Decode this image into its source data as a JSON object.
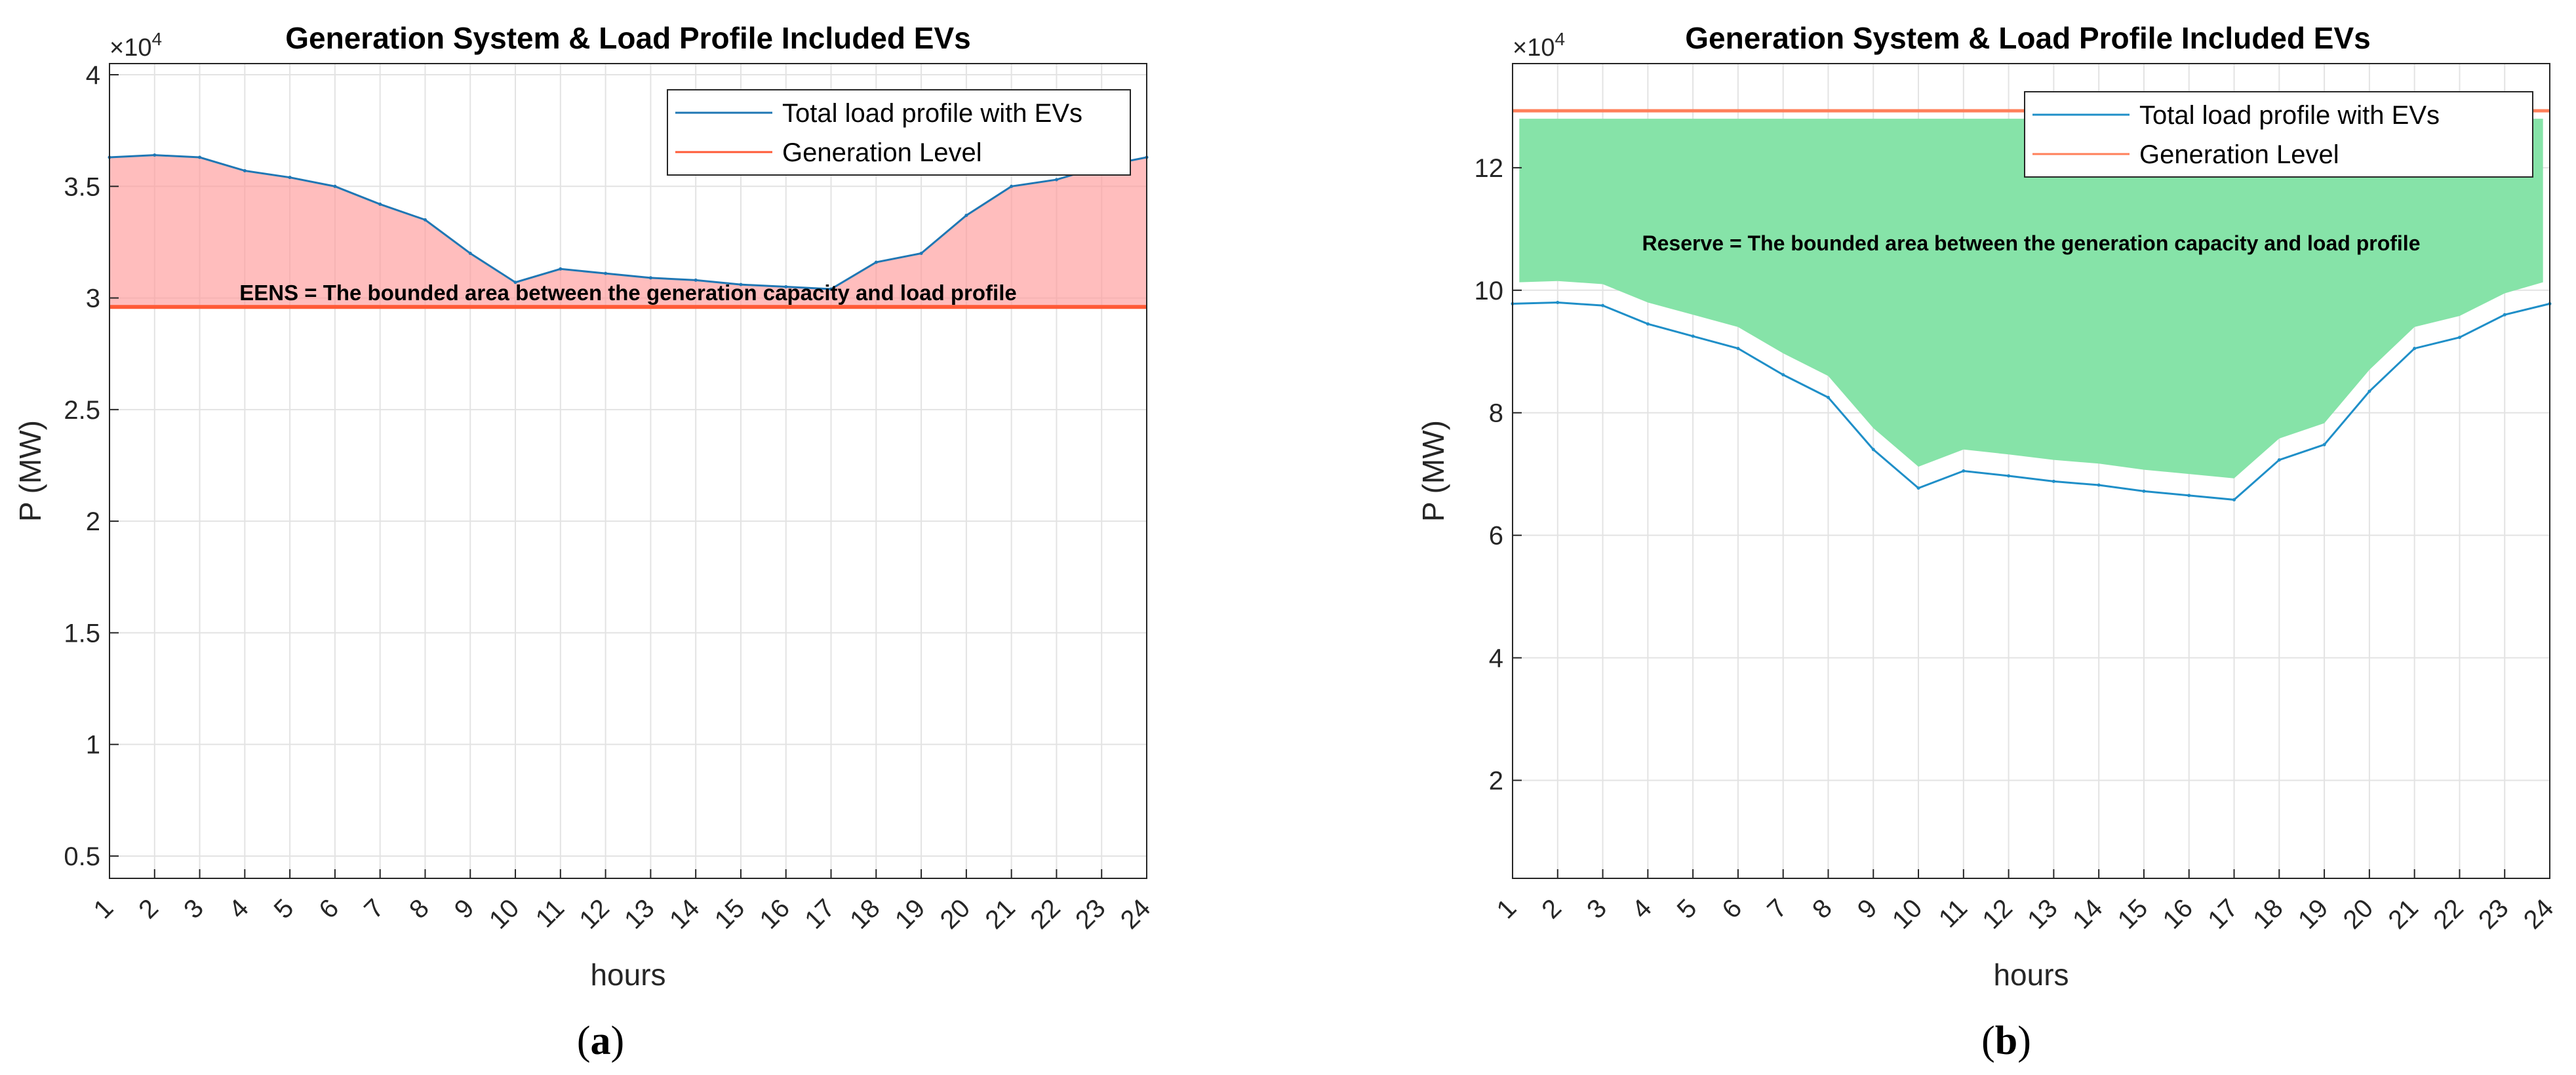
{
  "chart_data": [
    {
      "panel": "a",
      "type": "area",
      "title": "Generation System & Load Profile Included EVs",
      "xlabel": "hours",
      "ylabel": "P (MW)",
      "exponent_label": "×10",
      "exponent_power": "4",
      "xlim": [
        1,
        24
      ],
      "ylim": [
        0.4,
        4.05
      ],
      "xticks": [
        1,
        2,
        3,
        4,
        5,
        6,
        7,
        8,
        9,
        10,
        11,
        12,
        13,
        14,
        15,
        16,
        17,
        18,
        19,
        20,
        21,
        22,
        23,
        24
      ],
      "xtick_labels": [
        "1",
        "2",
        "3",
        "4",
        "5",
        "6",
        "7",
        "8",
        "9",
        "10",
        "11",
        "12",
        "13",
        "14",
        "15",
        "16",
        "17",
        "18",
        "19",
        "20",
        "21",
        "22",
        "23",
        "24"
      ],
      "yticks": [
        0.5,
        1,
        1.5,
        2,
        2.5,
        3,
        3.5,
        4
      ],
      "ytick_labels": [
        "0.5",
        "1",
        "1.5",
        "2",
        "2.5",
        "3",
        "3.5",
        "4"
      ],
      "grid": true,
      "legend_position": "top-right",
      "series": [
        {
          "name": "Total load profile with EVs",
          "color": "#1f77b4",
          "x": [
            1,
            2,
            3,
            4,
            5,
            6,
            7,
            8,
            9,
            10,
            11,
            12,
            13,
            14,
            15,
            16,
            17,
            18,
            19,
            20,
            21,
            22,
            23,
            24
          ],
          "values": [
            3.63,
            3.64,
            3.63,
            3.57,
            3.54,
            3.5,
            3.42,
            3.35,
            3.2,
            3.07,
            3.13,
            3.11,
            3.09,
            3.08,
            3.06,
            3.05,
            3.04,
            3.16,
            3.2,
            3.37,
            3.5,
            3.53,
            3.59,
            3.63
          ]
        },
        {
          "name": "Generation Level",
          "color": "#ff5a36",
          "constant": 2.96
        }
      ],
      "fill": {
        "color": "#ff9a9a",
        "between": [
          "Total load profile with EVs",
          "Generation Level"
        ]
      },
      "annotation": {
        "text": "EENS = The bounded area between the generation capacity and load profile",
        "x": 12.5,
        "y": 2.99
      },
      "caption": "(a)"
    },
    {
      "panel": "b",
      "type": "area",
      "title": "Generation System & Load Profile Included EVs",
      "xlabel": "hours",
      "ylabel": "P (MW)",
      "exponent_label": "×10",
      "exponent_power": "4",
      "xlim": [
        1,
        24
      ],
      "ylim": [
        0.4,
        13.7
      ],
      "xticks": [
        1,
        2,
        3,
        4,
        5,
        6,
        7,
        8,
        9,
        10,
        11,
        12,
        13,
        14,
        15,
        16,
        17,
        18,
        19,
        20,
        21,
        22,
        23,
        24
      ],
      "xtick_labels": [
        "1",
        "2",
        "3",
        "4",
        "5",
        "6",
        "7",
        "8",
        "9",
        "10",
        "11",
        "12",
        "13",
        "14",
        "15",
        "16",
        "17",
        "18",
        "19",
        "20",
        "21",
        "22",
        "23",
        "24"
      ],
      "yticks": [
        2,
        4,
        6,
        8,
        10,
        12
      ],
      "ytick_labels": [
        "2",
        "4",
        "6",
        "8",
        "10",
        "12"
      ],
      "grid": true,
      "legend_position": "top-right",
      "series": [
        {
          "name": "Total load profile with EVs",
          "color": "#1f8fc8",
          "x": [
            1,
            2,
            3,
            4,
            5,
            6,
            7,
            8,
            9,
            10,
            11,
            12,
            13,
            14,
            15,
            16,
            17,
            18,
            19,
            20,
            21,
            22,
            23,
            24
          ],
          "values": [
            9.78,
            9.8,
            9.75,
            9.45,
            9.25,
            9.05,
            8.62,
            8.25,
            7.4,
            6.77,
            7.05,
            6.97,
            6.88,
            6.82,
            6.72,
            6.65,
            6.58,
            7.23,
            7.48,
            8.35,
            9.05,
            9.23,
            9.6,
            9.78
          ]
        },
        {
          "name": "Generation Level",
          "color": "#ff7f5a",
          "constant": 12.93
        }
      ],
      "fill": {
        "color": "#86e3a8",
        "between": [
          "Total load profile with EVs",
          "Generation Level"
        ]
      },
      "annotation": {
        "text": "Reserve = The bounded area between the generation capacity and load profile",
        "x": 12.5,
        "y": 10.8
      },
      "caption": "(b)"
    }
  ]
}
